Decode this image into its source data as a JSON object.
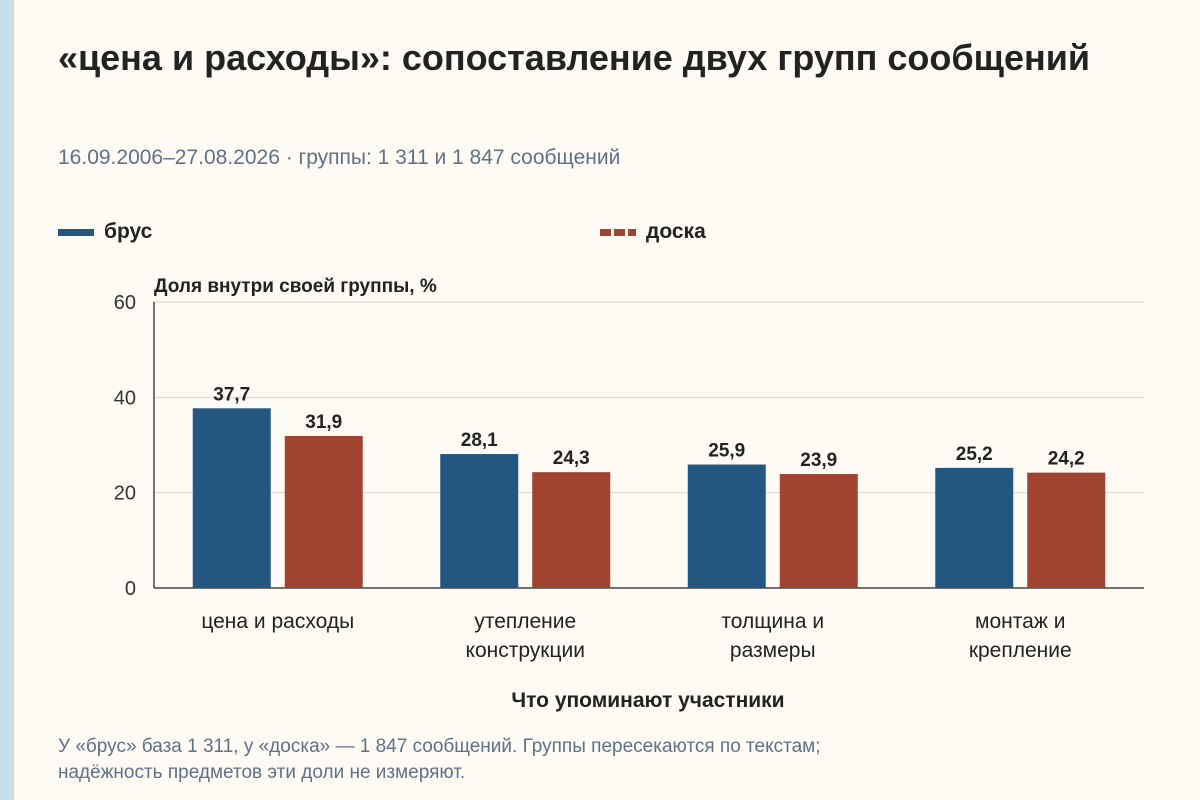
{
  "title": "«цена и расходы»: сопоставление двух групп сообщений",
  "subtitle": "16.09.2006–27.08.2026 · группы: 1 311 и 1 847 сообщений",
  "footnote_line1": "У «брус» база 1 311, у «доска» — 1 847 сообщений. Группы пересекаются по текстам;",
  "footnote_line2": "надёжность предметов эти доли не измеряют.",
  "colors": {
    "brus": "#245780",
    "doska": "#a04330",
    "grid": "#d9d6cf",
    "axis": "#444444"
  },
  "chart_data": {
    "type": "bar",
    "ylabel": "Доля внутри своей группы, %",
    "xlabel": "Что упоминают участники",
    "ylim": [
      0,
      60
    ],
    "yticks": [
      "0",
      "20",
      "40",
      "60"
    ],
    "grid": true,
    "legend_position": "top",
    "categories": [
      [
        "цена и расходы"
      ],
      [
        "утепление",
        "конструкции"
      ],
      [
        "толщина и",
        "размеры"
      ],
      [
        "монтаж и",
        "крепление"
      ]
    ],
    "series": [
      {
        "name": "брус",
        "values": [
          37.7,
          28.1,
          25.9,
          25.2
        ],
        "labels": [
          "37,7",
          "28,1",
          "25,9",
          "25,2"
        ],
        "color": "#245780",
        "style": "solid"
      },
      {
        "name": "доска",
        "values": [
          31.9,
          24.3,
          23.9,
          24.2
        ],
        "labels": [
          "31,9",
          "24,3",
          "23,9",
          "24,2"
        ],
        "color": "#a04330",
        "style": "dashed"
      }
    ]
  }
}
